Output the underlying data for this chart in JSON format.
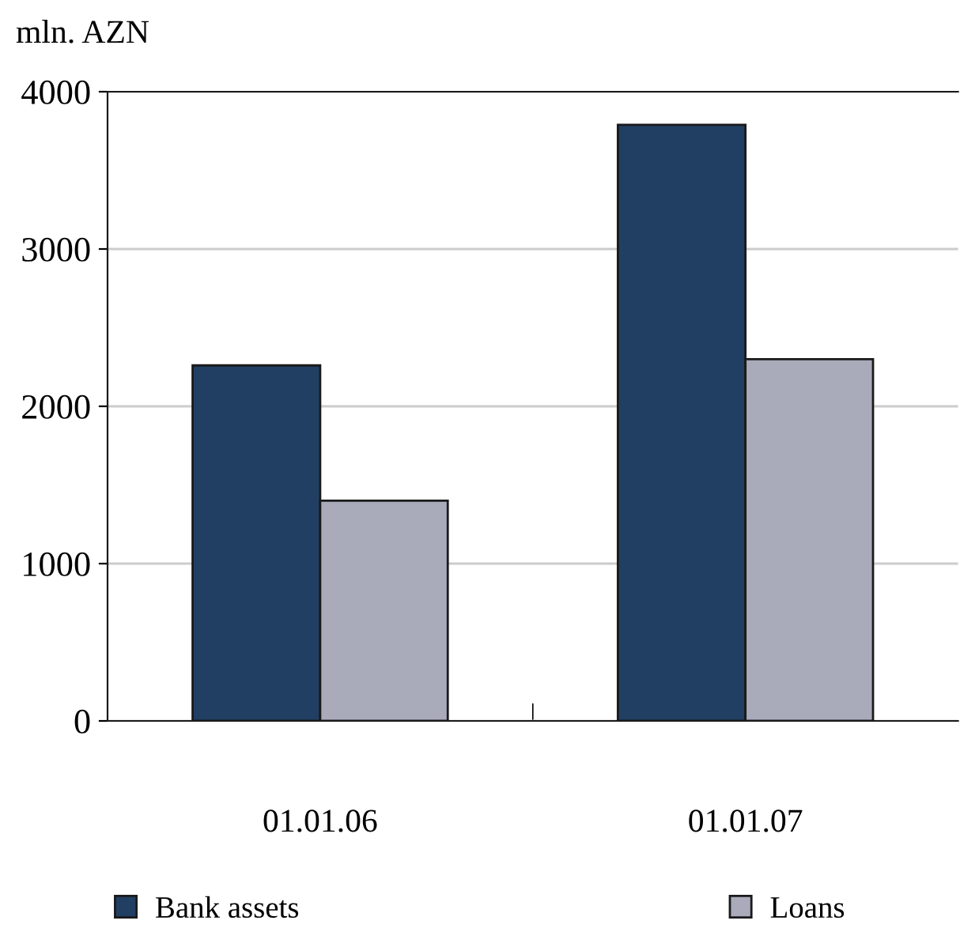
{
  "chart_data": {
    "type": "bar",
    "ylabel": "mln. AZN",
    "categories": [
      "01.01.06",
      "01.01.07"
    ],
    "series": [
      {
        "name": "Bank assets",
        "color": "#213f62",
        "values": [
          2260,
          3790
        ]
      },
      {
        "name": "Loans",
        "color": "#a9aaba",
        "values": [
          1400,
          2300
        ]
      }
    ],
    "ylim": [
      0,
      4000
    ],
    "yticks": [
      0,
      1000,
      2000,
      3000,
      4000
    ],
    "grid": "y",
    "legend": "bottom"
  }
}
